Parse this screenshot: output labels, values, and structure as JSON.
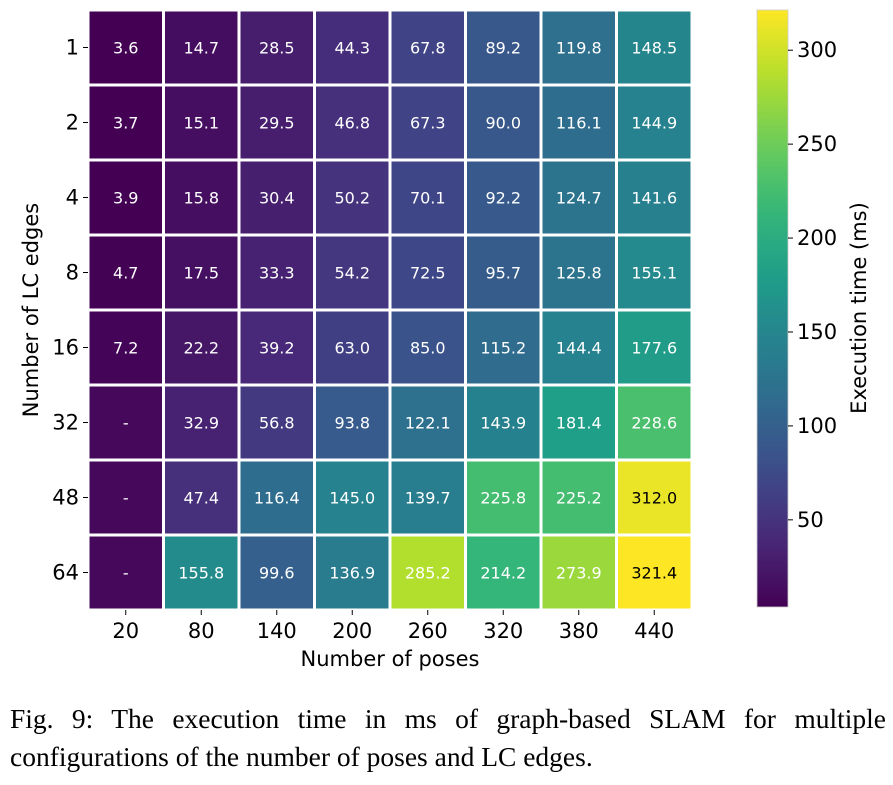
{
  "chart_data": {
    "type": "heatmap",
    "xlabel": "Number of poses",
    "ylabel": "Number of LC edges",
    "x_categories": [
      "20",
      "80",
      "140",
      "200",
      "260",
      "320",
      "380",
      "440"
    ],
    "y_categories": [
      "1",
      "2",
      "4",
      "8",
      "16",
      "32",
      "48",
      "64"
    ],
    "values": [
      [
        3.6,
        14.7,
        28.5,
        44.3,
        67.8,
        89.2,
        119.8,
        148.5
      ],
      [
        3.7,
        15.1,
        29.5,
        46.8,
        67.3,
        90.0,
        116.1,
        144.9
      ],
      [
        3.9,
        15.8,
        30.4,
        50.2,
        70.1,
        92.2,
        124.7,
        141.6
      ],
      [
        4.7,
        17.5,
        33.3,
        54.2,
        72.5,
        95.7,
        125.8,
        155.1
      ],
      [
        7.2,
        22.2,
        39.2,
        63.0,
        85.0,
        115.2,
        144.4,
        177.6
      ],
      [
        null,
        32.9,
        56.8,
        93.8,
        122.1,
        143.9,
        181.4,
        228.6
      ],
      [
        null,
        47.4,
        116.4,
        145.0,
        139.7,
        225.8,
        225.2,
        312.0
      ],
      [
        null,
        155.8,
        99.6,
        136.9,
        285.2,
        214.2,
        273.9,
        321.4
      ]
    ],
    "missing_label": "-",
    "colormap": "viridis",
    "colorbar": {
      "label": "Execution time (ms)",
      "range": [
        3.6,
        321.4
      ],
      "ticks": [
        50,
        100,
        150,
        200,
        250,
        300
      ]
    }
  },
  "caption": "Fig. 9: The execution time in ms of graph-based SLAM for multiple configurations of the number of poses and LC edges."
}
